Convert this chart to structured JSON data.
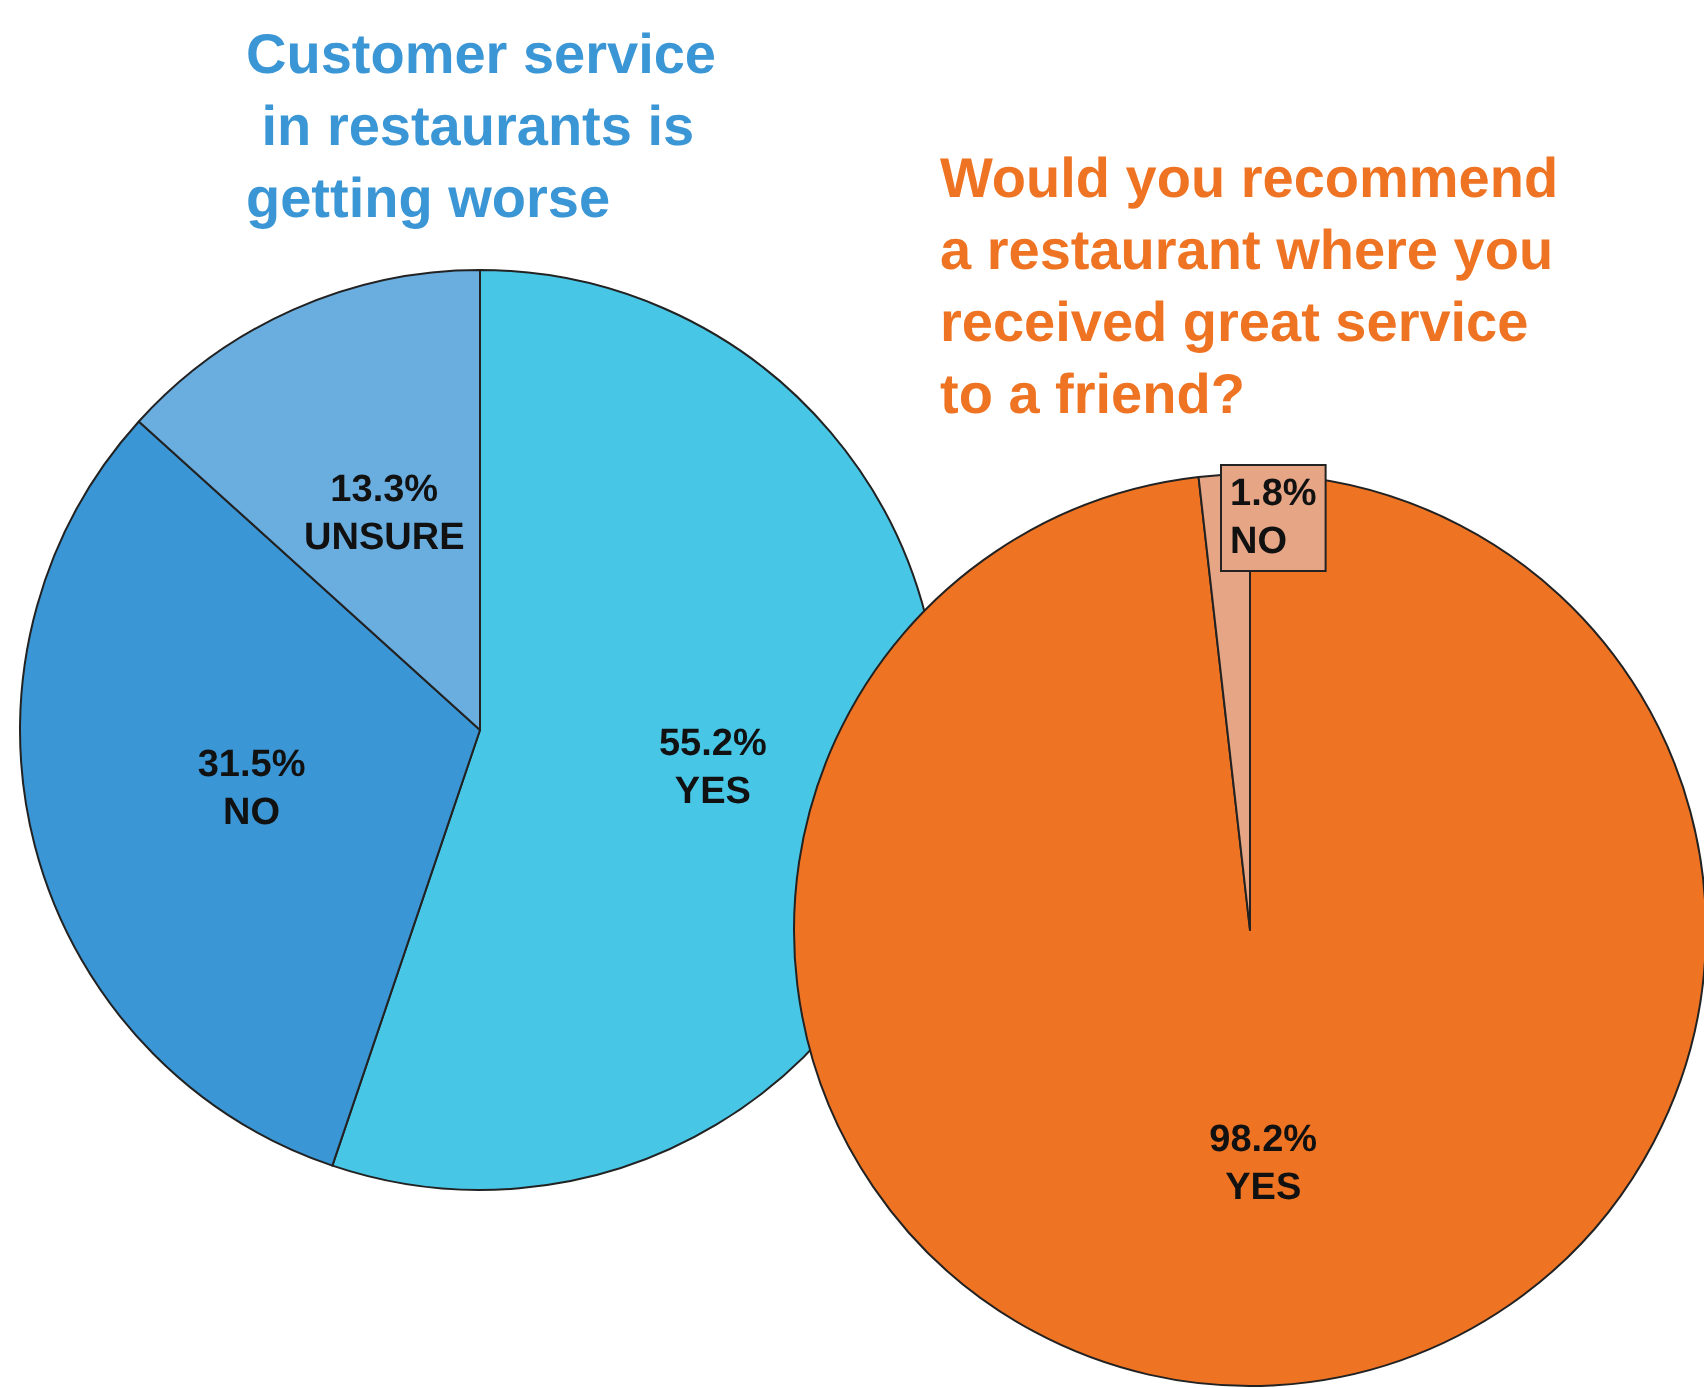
{
  "chart_data": [
    {
      "type": "pie",
      "title": "Customer service in restaurants is getting worse",
      "categories": [
        "YES",
        "NO",
        "UNSURE"
      ],
      "values": [
        55.2,
        31.5,
        13.3
      ],
      "colors": [
        "#48c6e6",
        "#3a96d4",
        "#6aaee0"
      ],
      "value_labels": [
        "55.2%",
        "31.5%",
        "13.3%"
      ]
    },
    {
      "type": "pie",
      "title": "Would you recommend a restaurant where you received great service to a friend?",
      "categories": [
        "YES",
        "NO"
      ],
      "values": [
        98.2,
        1.8
      ],
      "colors": [
        "#ee7424",
        "#e6a585"
      ],
      "value_labels": [
        "98.2%",
        "1.8%"
      ]
    }
  ]
}
